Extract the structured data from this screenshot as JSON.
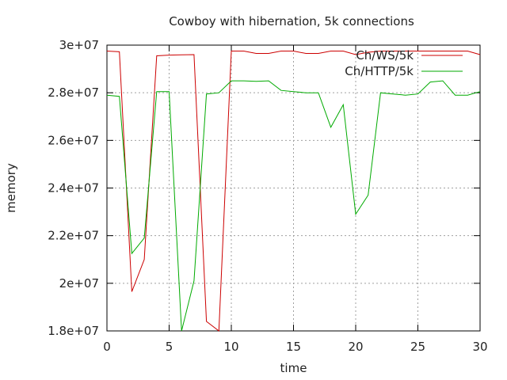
{
  "chart_data": {
    "type": "line",
    "title": "Cowboy with hibernation, 5k connections",
    "xlabel": "time",
    "ylabel": "memory",
    "xlim": [
      0,
      30
    ],
    "ylim": [
      18000000,
      30000000
    ],
    "x_ticks": [
      0,
      5,
      10,
      15,
      20,
      25,
      30
    ],
    "x_tick_labels": [
      "0",
      "5",
      "10",
      "15",
      "20",
      "25",
      "30"
    ],
    "y_ticks": [
      18000000,
      20000000,
      22000000,
      24000000,
      26000000,
      28000000,
      30000000
    ],
    "y_tick_labels": [
      "1.8e+07",
      "2e+07",
      "2.2e+07",
      "2.4e+07",
      "2.6e+07",
      "2.8e+07",
      "3e+07"
    ],
    "grid": true,
    "legend_position": "top-right",
    "series": [
      {
        "name": "Ch/WS/5k",
        "color": "#cc0000",
        "x": [
          0,
          1,
          2,
          3,
          4,
          5,
          6,
          7,
          8,
          9,
          10,
          11,
          12,
          13,
          14,
          15,
          16,
          17,
          18,
          19,
          20,
          21,
          22,
          23,
          24,
          25,
          26,
          27,
          28,
          29,
          30
        ],
        "y": [
          29750000,
          29720000,
          19650000,
          21000000,
          29550000,
          29580000,
          29590000,
          29600000,
          18400000,
          18000000,
          29750000,
          29750000,
          29650000,
          29650000,
          29750000,
          29750000,
          29650000,
          29650000,
          29750000,
          29750000,
          29600000,
          29700000,
          29750000,
          29750000,
          29750000,
          29750000,
          29750000,
          29750000,
          29750000,
          29750000,
          29600000
        ]
      },
      {
        "name": "Ch/HTTP/5k",
        "color": "#00aa00",
        "x": [
          0,
          1,
          2,
          3,
          4,
          5,
          6,
          7,
          8,
          9,
          10,
          11,
          12,
          13,
          14,
          15,
          16,
          17,
          18,
          19,
          20,
          21,
          22,
          23,
          24,
          25,
          26,
          27,
          28,
          29,
          30
        ],
        "y": [
          27900000,
          27850000,
          21250000,
          21900000,
          28050000,
          28050000,
          18000000,
          20100000,
          27950000,
          28000000,
          28500000,
          28500000,
          28480000,
          28500000,
          28100000,
          28050000,
          28000000,
          28000000,
          26550000,
          27500000,
          22900000,
          23700000,
          28000000,
          27950000,
          27900000,
          27950000,
          28450000,
          28500000,
          27900000,
          27900000,
          28050000
        ]
      }
    ]
  }
}
